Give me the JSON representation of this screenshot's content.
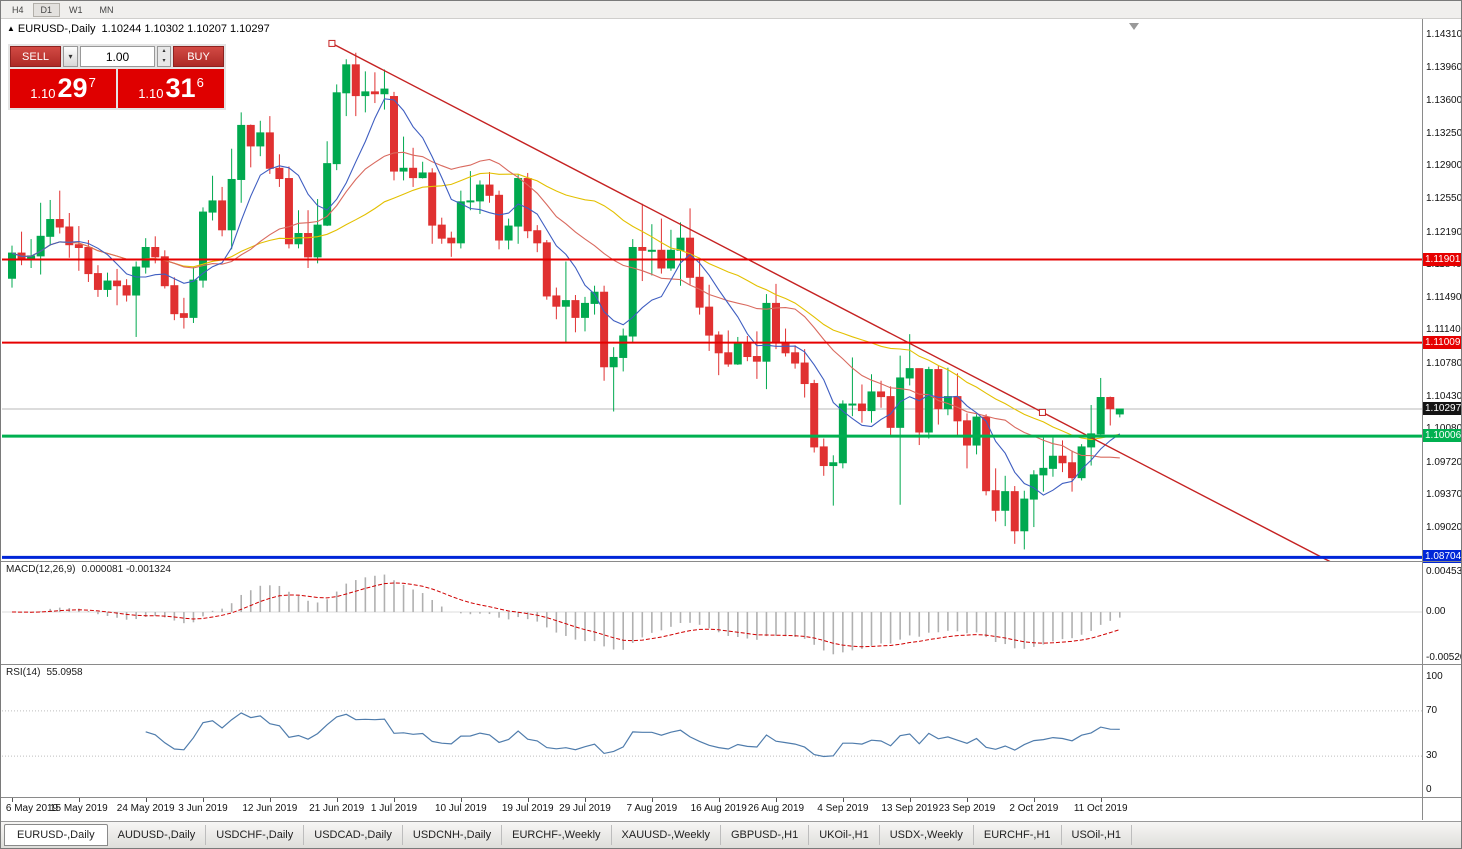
{
  "colors": {
    "candle_up": "#00a94f",
    "candle_down": "#e03131",
    "background": "#ffffff",
    "trade_red": "#df0000",
    "resistance_red": "#e60000",
    "support_green": "#00b050",
    "support_blue": "#0026d8",
    "current_price_flag": "#141414"
  },
  "toolbar": {
    "timeframes": [
      "H4",
      "D1",
      "W1",
      "MN"
    ],
    "active": "D1"
  },
  "chart": {
    "title_symbol": "EURUSD-,Daily",
    "ohlc_text": "1.10244 1.10302 1.10207 1.10297"
  },
  "trade_widget": {
    "sell_label": "SELL",
    "buy_label": "BUY",
    "lot_value": "1.00",
    "sell_price": {
      "prefix": "1.10",
      "big": "29",
      "sup": "7"
    },
    "buy_price": {
      "prefix": "1.10",
      "big": "31",
      "sup": "6"
    }
  },
  "macd": {
    "header": "MACD(12,26,9)",
    "values_text": "0.000081 -0.001324"
  },
  "rsi": {
    "header": "RSI(14)",
    "value_text": "55.0958"
  },
  "tabs": {
    "active": "EURUSD-,Daily",
    "items": [
      "EURUSD-,Daily",
      "AUDUSD-,Daily",
      "USDCHF-,Daily",
      "USDCAD-,Daily",
      "USDCNH-,Daily",
      "EURCHF-,Weekly",
      "XAUUSD-,Weekly",
      "GBPUSD-,H1",
      "UKOil-,H1",
      "USDX-,Weekly",
      "EURCHF-,H1",
      "USOil-,H1"
    ]
  },
  "chart_data": {
    "type": "candlestick",
    "symbol": "EURUSD-",
    "timeframe": "Daily",
    "last_ohlc": {
      "open": 1.10244,
      "high": 1.10302,
      "low": 1.10207,
      "close": 1.10297
    },
    "current_price": {
      "value": 1.10297,
      "label": "1.10297"
    },
    "price_range": {
      "top": 1.14482,
      "bottom": 1.08655
    },
    "y_axis_ticks": [
      "1.14310",
      "1.13960",
      "1.13600",
      "1.13250",
      "1.12900",
      "1.12550",
      "1.12190",
      "1.11840",
      "1.11490",
      "1.11140",
      "1.10780",
      "1.10430",
      "1.10080",
      "1.09720",
      "1.09370",
      "1.09020"
    ],
    "x_ticks": [
      [
        0,
        "6 May 2019"
      ],
      [
        7,
        "15 May 2019"
      ],
      [
        14,
        "24 May 2019"
      ],
      [
        20,
        "3 Jun 2019"
      ],
      [
        27,
        "12 Jun 2019"
      ],
      [
        34,
        "21 Jun 2019"
      ],
      [
        40,
        "1 Jul 2019"
      ],
      [
        47,
        "10 Jul 2019"
      ],
      [
        54,
        "19 Jul 2019"
      ],
      [
        60,
        "29 Jul 2019"
      ],
      [
        67,
        "7 Aug 2019"
      ],
      [
        74,
        "16 Aug 2019"
      ],
      [
        80,
        "26 Aug 2019"
      ],
      [
        87,
        "4 Sep 2019"
      ],
      [
        94,
        "13 Sep 2019"
      ],
      [
        100,
        "23 Sep 2019"
      ],
      [
        107,
        "2 Oct 2019"
      ],
      [
        114,
        "11 Oct 2019"
      ]
    ],
    "candles": [
      [
        1.117,
        1.1205,
        1.116,
        1.1197
      ],
      [
        1.1197,
        1.122,
        1.1184,
        1.119
      ],
      [
        1.119,
        1.1212,
        1.1181,
        1.1194
      ],
      [
        1.1194,
        1.1251,
        1.1174,
        1.1215
      ],
      [
        1.1215,
        1.1254,
        1.1205,
        1.1233
      ],
      [
        1.1233,
        1.1264,
        1.1218,
        1.1225
      ],
      [
        1.1225,
        1.124,
        1.1192,
        1.1206
      ],
      [
        1.1206,
        1.1226,
        1.1178,
        1.1203
      ],
      [
        1.1203,
        1.1211,
        1.1166,
        1.1175
      ],
      [
        1.1175,
        1.1184,
        1.115,
        1.1158
      ],
      [
        1.1158,
        1.1176,
        1.115,
        1.1167
      ],
      [
        1.1167,
        1.118,
        1.1141,
        1.1162
      ],
      [
        1.1162,
        1.1169,
        1.1145,
        1.1152
      ],
      [
        1.1152,
        1.1188,
        1.1107,
        1.1182
      ],
      [
        1.1182,
        1.1213,
        1.1175,
        1.1203
      ],
      [
        1.1203,
        1.1215,
        1.1186,
        1.1193
      ],
      [
        1.1193,
        1.12,
        1.1159,
        1.1162
      ],
      [
        1.1162,
        1.1171,
        1.1125,
        1.1132
      ],
      [
        1.1132,
        1.1149,
        1.1116,
        1.1128
      ],
      [
        1.1128,
        1.1182,
        1.1122,
        1.1168
      ],
      [
        1.1168,
        1.1246,
        1.116,
        1.1241
      ],
      [
        1.1241,
        1.128,
        1.1232,
        1.1253
      ],
      [
        1.1253,
        1.1268,
        1.1215,
        1.1222
      ],
      [
        1.1222,
        1.1309,
        1.1201,
        1.1276
      ],
      [
        1.1276,
        1.1348,
        1.1251,
        1.1334
      ],
      [
        1.1334,
        1.1335,
        1.1289,
        1.1312
      ],
      [
        1.1312,
        1.1339,
        1.1301,
        1.1326
      ],
      [
        1.1326,
        1.1344,
        1.1282,
        1.1288
      ],
      [
        1.1288,
        1.1303,
        1.1268,
        1.1277
      ],
      [
        1.1277,
        1.129,
        1.1202,
        1.1207
      ],
      [
        1.1207,
        1.1243,
        1.1202,
        1.1218
      ],
      [
        1.1218,
        1.1243,
        1.1181,
        1.1193
      ],
      [
        1.1193,
        1.1255,
        1.1186,
        1.1227
      ],
      [
        1.1227,
        1.1317,
        1.1226,
        1.1293
      ],
      [
        1.1293,
        1.1378,
        1.1286,
        1.1369
      ],
      [
        1.1369,
        1.1405,
        1.1344,
        1.1399
      ],
      [
        1.1399,
        1.1412,
        1.1344,
        1.1366
      ],
      [
        1.1366,
        1.1392,
        1.1348,
        1.137
      ],
      [
        1.137,
        1.1391,
        1.1358,
        1.1368
      ],
      [
        1.1368,
        1.1394,
        1.1351,
        1.1373
      ],
      [
        1.1365,
        1.137,
        1.1275,
        1.1285
      ],
      [
        1.1285,
        1.1322,
        1.1275,
        1.1288
      ],
      [
        1.1288,
        1.131,
        1.1268,
        1.1278
      ],
      [
        1.1278,
        1.1295,
        1.1277,
        1.1283
      ],
      [
        1.1283,
        1.1288,
        1.1207,
        1.1227
      ],
      [
        1.1227,
        1.1235,
        1.1207,
        1.1213
      ],
      [
        1.1213,
        1.122,
        1.1193,
        1.1208
      ],
      [
        1.1208,
        1.1264,
        1.1202,
        1.1252
      ],
      [
        1.1252,
        1.1285,
        1.1243,
        1.1253
      ],
      [
        1.1253,
        1.1275,
        1.1239,
        1.127
      ],
      [
        1.127,
        1.1284,
        1.1251,
        1.1259
      ],
      [
        1.1259,
        1.1264,
        1.1201,
        1.1211
      ],
      [
        1.1211,
        1.1234,
        1.1201,
        1.1226
      ],
      [
        1.1226,
        1.1282,
        1.1207,
        1.1277
      ],
      [
        1.1277,
        1.1283,
        1.1213,
        1.1221
      ],
      [
        1.1221,
        1.1227,
        1.1198,
        1.1208
      ],
      [
        1.1208,
        1.1211,
        1.1147,
        1.1151
      ],
      [
        1.1151,
        1.116,
        1.1126,
        1.114
      ],
      [
        1.114,
        1.1188,
        1.1101,
        1.1146
      ],
      [
        1.1146,
        1.1152,
        1.1112,
        1.1128
      ],
      [
        1.1128,
        1.115,
        1.1113,
        1.1143
      ],
      [
        1.1143,
        1.1162,
        1.1131,
        1.1155
      ],
      [
        1.1155,
        1.1162,
        1.106,
        1.1075
      ],
      [
        1.1075,
        1.1096,
        1.1027,
        1.1085
      ],
      [
        1.1085,
        1.1116,
        1.107,
        1.1108
      ],
      [
        1.1108,
        1.1212,
        1.1101,
        1.1203
      ],
      [
        1.1203,
        1.125,
        1.1167,
        1.12
      ],
      [
        1.12,
        1.1228,
        1.1173,
        1.12
      ],
      [
        1.12,
        1.1234,
        1.1175,
        1.1181
      ],
      [
        1.1181,
        1.1222,
        1.1178,
        1.12
      ],
      [
        1.12,
        1.123,
        1.1162,
        1.1213
      ],
      [
        1.1213,
        1.1245,
        1.1163,
        1.1171
      ],
      [
        1.1171,
        1.1192,
        1.1131,
        1.1139
      ],
      [
        1.1139,
        1.1163,
        1.1092,
        1.1109
      ],
      [
        1.1109,
        1.1113,
        1.1066,
        1.109
      ],
      [
        1.109,
        1.1114,
        1.1075,
        1.1078
      ],
      [
        1.1078,
        1.1107,
        1.1077,
        1.11
      ],
      [
        1.11,
        1.1108,
        1.1081,
        1.1086
      ],
      [
        1.1086,
        1.1113,
        1.1062,
        1.1081
      ],
      [
        1.1081,
        1.1153,
        1.1051,
        1.1143
      ],
      [
        1.1143,
        1.1164,
        1.1094,
        1.1101
      ],
      [
        1.1101,
        1.1116,
        1.1086,
        1.109
      ],
      [
        1.109,
        1.1098,
        1.1073,
        1.1079
      ],
      [
        1.1079,
        1.1094,
        1.1042,
        1.1057
      ],
      [
        1.1057,
        1.1061,
        1.0983,
        1.0989
      ],
      [
        1.0989,
        1.0998,
        1.0958,
        1.0969
      ],
      [
        1.0969,
        1.098,
        1.0926,
        1.0972
      ],
      [
        1.0972,
        1.1039,
        1.0966,
        1.1035
      ],
      [
        1.1035,
        1.1085,
        1.1022,
        1.1035
      ],
      [
        1.1035,
        1.1056,
        1.1015,
        1.1028
      ],
      [
        1.1028,
        1.1067,
        1.1015,
        1.1048
      ],
      [
        1.1048,
        1.106,
        1.1031,
        1.1043
      ],
      [
        1.1043,
        1.1054,
        1.1,
        1.101
      ],
      [
        1.101,
        1.1087,
        1.0927,
        1.1063
      ],
      [
        1.1063,
        1.111,
        1.1055,
        1.1073
      ],
      [
        1.1073,
        1.1073,
        1.0991,
        1.1005
      ],
      [
        1.1005,
        1.1075,
        1.0998,
        1.1072
      ],
      [
        1.1072,
        1.1076,
        1.1013,
        1.103
      ],
      [
        1.103,
        1.1074,
        1.1023,
        1.1043
      ],
      [
        1.1043,
        1.1068,
        1.1,
        1.1017
      ],
      [
        1.1017,
        1.1025,
        1.0966,
        1.0991
      ],
      [
        1.0991,
        1.1024,
        1.0981,
        1.1021
      ],
      [
        1.1021,
        1.1024,
        1.0937,
        1.0942
      ],
      [
        1.0942,
        1.0966,
        1.0909,
        1.0921
      ],
      [
        1.0921,
        1.0958,
        1.0904,
        1.0941
      ],
      [
        1.0941,
        1.0947,
        1.0885,
        1.0899
      ],
      [
        1.0899,
        1.0942,
        1.0879,
        1.0933
      ],
      [
        1.0933,
        1.0964,
        1.0903,
        1.0959
      ],
      [
        1.0959,
        1.0999,
        1.0941,
        1.0966
      ],
      [
        1.0966,
        1.0999,
        1.0957,
        1.0979
      ],
      [
        1.0979,
        1.0996,
        1.0962,
        1.0972
      ],
      [
        1.0972,
        1.0985,
        1.0941,
        1.0956
      ],
      [
        1.0956,
        1.0992,
        1.0953,
        1.0989
      ],
      [
        1.0989,
        1.1034,
        1.0969,
        1.1003
      ],
      [
        1.1003,
        1.1063,
        1.1002,
        1.1042
      ],
      [
        1.1042,
        1.1043,
        1.1012,
        1.103
      ],
      [
        1.10244,
        1.10302,
        1.10207,
        1.10297
      ]
    ],
    "horizontal_lines": [
      {
        "label": "1.11901",
        "price": 1.11901,
        "color": "#e60000",
        "width": 2
      },
      {
        "label": "1.11009",
        "price": 1.11009,
        "color": "#e60000",
        "width": 2
      },
      {
        "label": "1.10006",
        "price": 1.10006,
        "color": "#00b050",
        "width": 3
      },
      {
        "label": "1.08704",
        "price": 1.08704,
        "color": "#0026d8",
        "width": 3
      }
    ],
    "trendline": {
      "color": "#c52222",
      "from": {
        "index": 33.5,
        "price": 1.1422
      },
      "to": {
        "index": 138,
        "price": 1.0866
      },
      "anchors": [
        [
          33.5,
          1.1422
        ],
        [
          107.9,
          1.1026
        ]
      ]
    },
    "moving_averages": [
      {
        "period": 30,
        "color": "#e3c000"
      },
      {
        "period": 18,
        "color": "#d96a5f"
      },
      {
        "period": 7,
        "color": "#3f5ec1"
      }
    ],
    "macd_panel": {
      "params": [
        12,
        26,
        9
      ],
      "main_value": 8.1e-05,
      "signal_value": -0.001324,
      "axis_labels": [
        "0.004536",
        "0.00",
        "-0.005205"
      ],
      "scale_top": 0.004536,
      "scale_bottom": -0.005205,
      "histogram_color": "#b0b0b0",
      "signal_color": "#d00000"
    },
    "rsi_panel": {
      "period": 14,
      "value": 55.0958,
      "axis_labels": [
        100,
        70,
        30,
        0
      ],
      "levels": [
        70,
        30
      ],
      "line_color": "#4f7cac"
    }
  }
}
